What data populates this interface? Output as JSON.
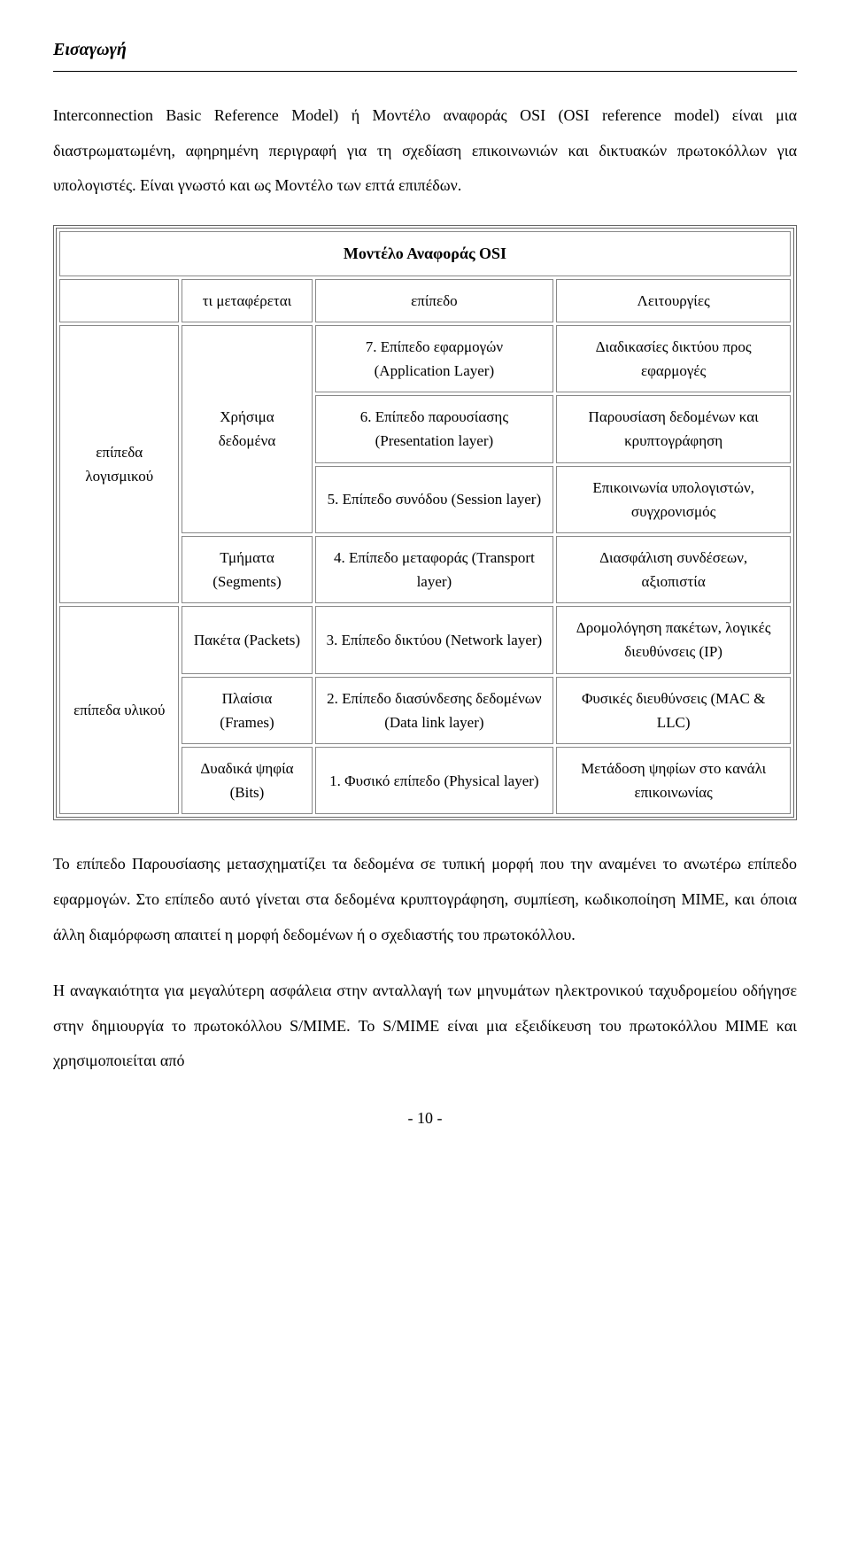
{
  "header": {
    "title": "Εισαγωγή"
  },
  "intro_paragraph": "Interconnection Basic Reference Model) ή Μοντέλο αναφοράς OSI (OSI reference model) είναι μια διαστρωματωμένη, αφηρημένη περιγραφή για τη σχεδίαση επικοινωνιών και δικτυακών πρωτοκόλλων για υπολογιστές. Είναι γνωστό και ως Μοντέλο των επτά επιπέδων.",
  "table": {
    "title": "Μοντέλο Αναφοράς OSI",
    "headers": {
      "col2": "τι μεταφέρεται",
      "col3": "επίπεδο",
      "col4": "Λειτουργίες"
    },
    "groups": {
      "software": "επίπεδα λογισμικού",
      "hardware": "επίπεδα υλικού"
    },
    "transferred": {
      "useful_data": "Χρήσιμα δεδομένα",
      "segments": "Τμήματα (Segments)",
      "packets": "Πακέτα (Packets)",
      "frames": "Πλαίσια (Frames)",
      "bits": "Δυαδικά ψηφία (Bits)"
    },
    "layers": {
      "l7": "7. Επίπεδο εφαρμογών (Application Layer)",
      "l6": "6. Επίπεδο παρουσίασης (Presentation layer)",
      "l5": "5. Επίπεδο συνόδου (Session layer)",
      "l4": "4. Επίπεδο μεταφοράς (Transport layer)",
      "l3": "3. Επίπεδο δικτύου (Network layer)",
      "l2": "2. Επίπεδο διασύνδεσης δεδομένων (Data link layer)",
      "l1": "1. Φυσικό επίπεδο (Physical layer)"
    },
    "functions": {
      "f7": "Διαδικασίες δικτύου προς εφαρμογές",
      "f6": "Παρουσίαση δεδομένων και κρυπτογράφηση",
      "f5": "Επικοινωνία υπολογιστών, συγχρονισμός",
      "f4": "Διασφάλιση συνδέσεων, αξιοπιστία",
      "f3": "Δρομολόγηση πακέτων, λογικές διευθύνσεις (IP)",
      "f2": "Φυσικές διευθύνσεις (MAC & LLC)",
      "f1": "Μετάδοση ψηφίων στο κανάλι επικοινωνίας"
    }
  },
  "paragraph2": "Το επίπεδο Παρουσίασης μετασχηματίζει τα δεδομένα σε τυπική μορφή που την αναμένει το ανωτέρω επίπεδο εφαρμογών. Στο επίπεδο αυτό γίνεται στα δεδομένα κρυπτογράφηση, συμπίεση, κωδικοποίηση MIME, και όποια άλλη διαμόρφωση απαιτεί η μορφή δεδομένων ή ο σχεδιαστής του πρωτοκόλλου.",
  "paragraph3": "Η αναγκαιότητα για μεγαλύτερη ασφάλεια στην ανταλλαγή των μηνυμάτων ηλεκτρονικού ταχυδρομείου οδήγησε στην δημιουργία το πρωτοκόλλου S/MIME. Το S/MIME είναι μια εξειδίκευση του πρωτοκόλλου MIME και χρησιμοποιείται από",
  "footer": {
    "page_number": "- 10 -"
  }
}
